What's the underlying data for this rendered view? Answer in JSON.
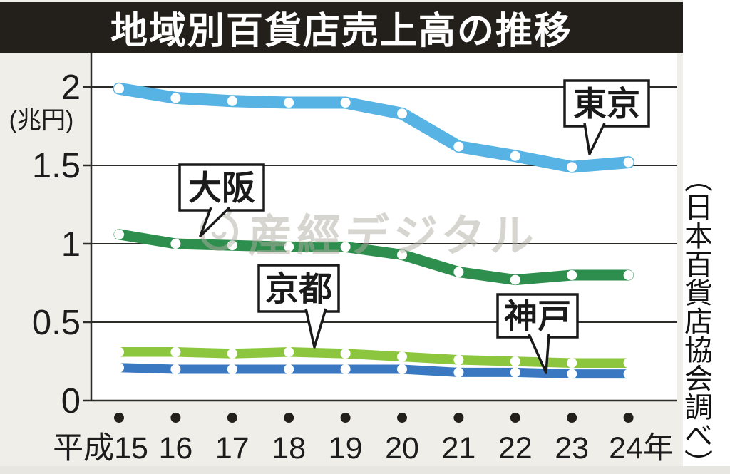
{
  "title": "地域別百貨店売上高の推移",
  "source_note": "（日本百貨店協会調べ）",
  "watermark": {
    "text": "産經デジタル",
    "logo": "sankei-bug-circle-logo"
  },
  "colors": {
    "background": "#efeee8",
    "plot_background": "#ffffff",
    "title_bar": "#231f1a",
    "axis": "#2b2b28",
    "tokyo": "#56b3e4",
    "osaka": "#2d8e4d",
    "kyoto": "#8cc63e",
    "kobe": "#3a79c2",
    "watermark_gray": "#aeaca3"
  },
  "chart_data": {
    "type": "line",
    "title": "地域別百貨店売上高の推移",
    "unit_label": "(兆円)",
    "xlabel": "年 (平成)",
    "ylabel": "売上高 (兆円)",
    "ylim": [
      0,
      2
    ],
    "grid": true,
    "categories": [
      "平成15",
      "16",
      "17",
      "18",
      "19",
      "20",
      "21",
      "22",
      "23",
      "24年"
    ],
    "y_ticks": [
      {
        "value": 0,
        "label": "0"
      },
      {
        "value": 0.5,
        "label": "0.5"
      },
      {
        "value": 1,
        "label": "1"
      },
      {
        "value": 1.5,
        "label": "1.5"
      },
      {
        "value": 2,
        "label": "2"
      }
    ],
    "series": [
      {
        "name": "東京",
        "key": "tokyo",
        "color": "#56b3e4",
        "values": [
          1.99,
          1.93,
          1.91,
          1.9,
          1.9,
          1.83,
          1.62,
          1.56,
          1.49,
          1.52
        ]
      },
      {
        "name": "大阪",
        "key": "osaka",
        "color": "#2d8e4d",
        "values": [
          1.06,
          1.0,
          0.99,
          0.98,
          0.98,
          0.93,
          0.82,
          0.77,
          0.8,
          0.8
        ]
      },
      {
        "name": "京都",
        "key": "kyoto",
        "color": "#8cc63e",
        "values": [
          0.31,
          0.31,
          0.3,
          0.31,
          0.3,
          0.28,
          0.26,
          0.25,
          0.24,
          0.24
        ]
      },
      {
        "name": "神戸",
        "key": "kobe",
        "color": "#3a79c2",
        "values": [
          0.21,
          0.2,
          0.2,
          0.2,
          0.2,
          0.2,
          0.18,
          0.18,
          0.17,
          0.17
        ]
      }
    ],
    "legend_position": "callout-labels-on-lines"
  }
}
